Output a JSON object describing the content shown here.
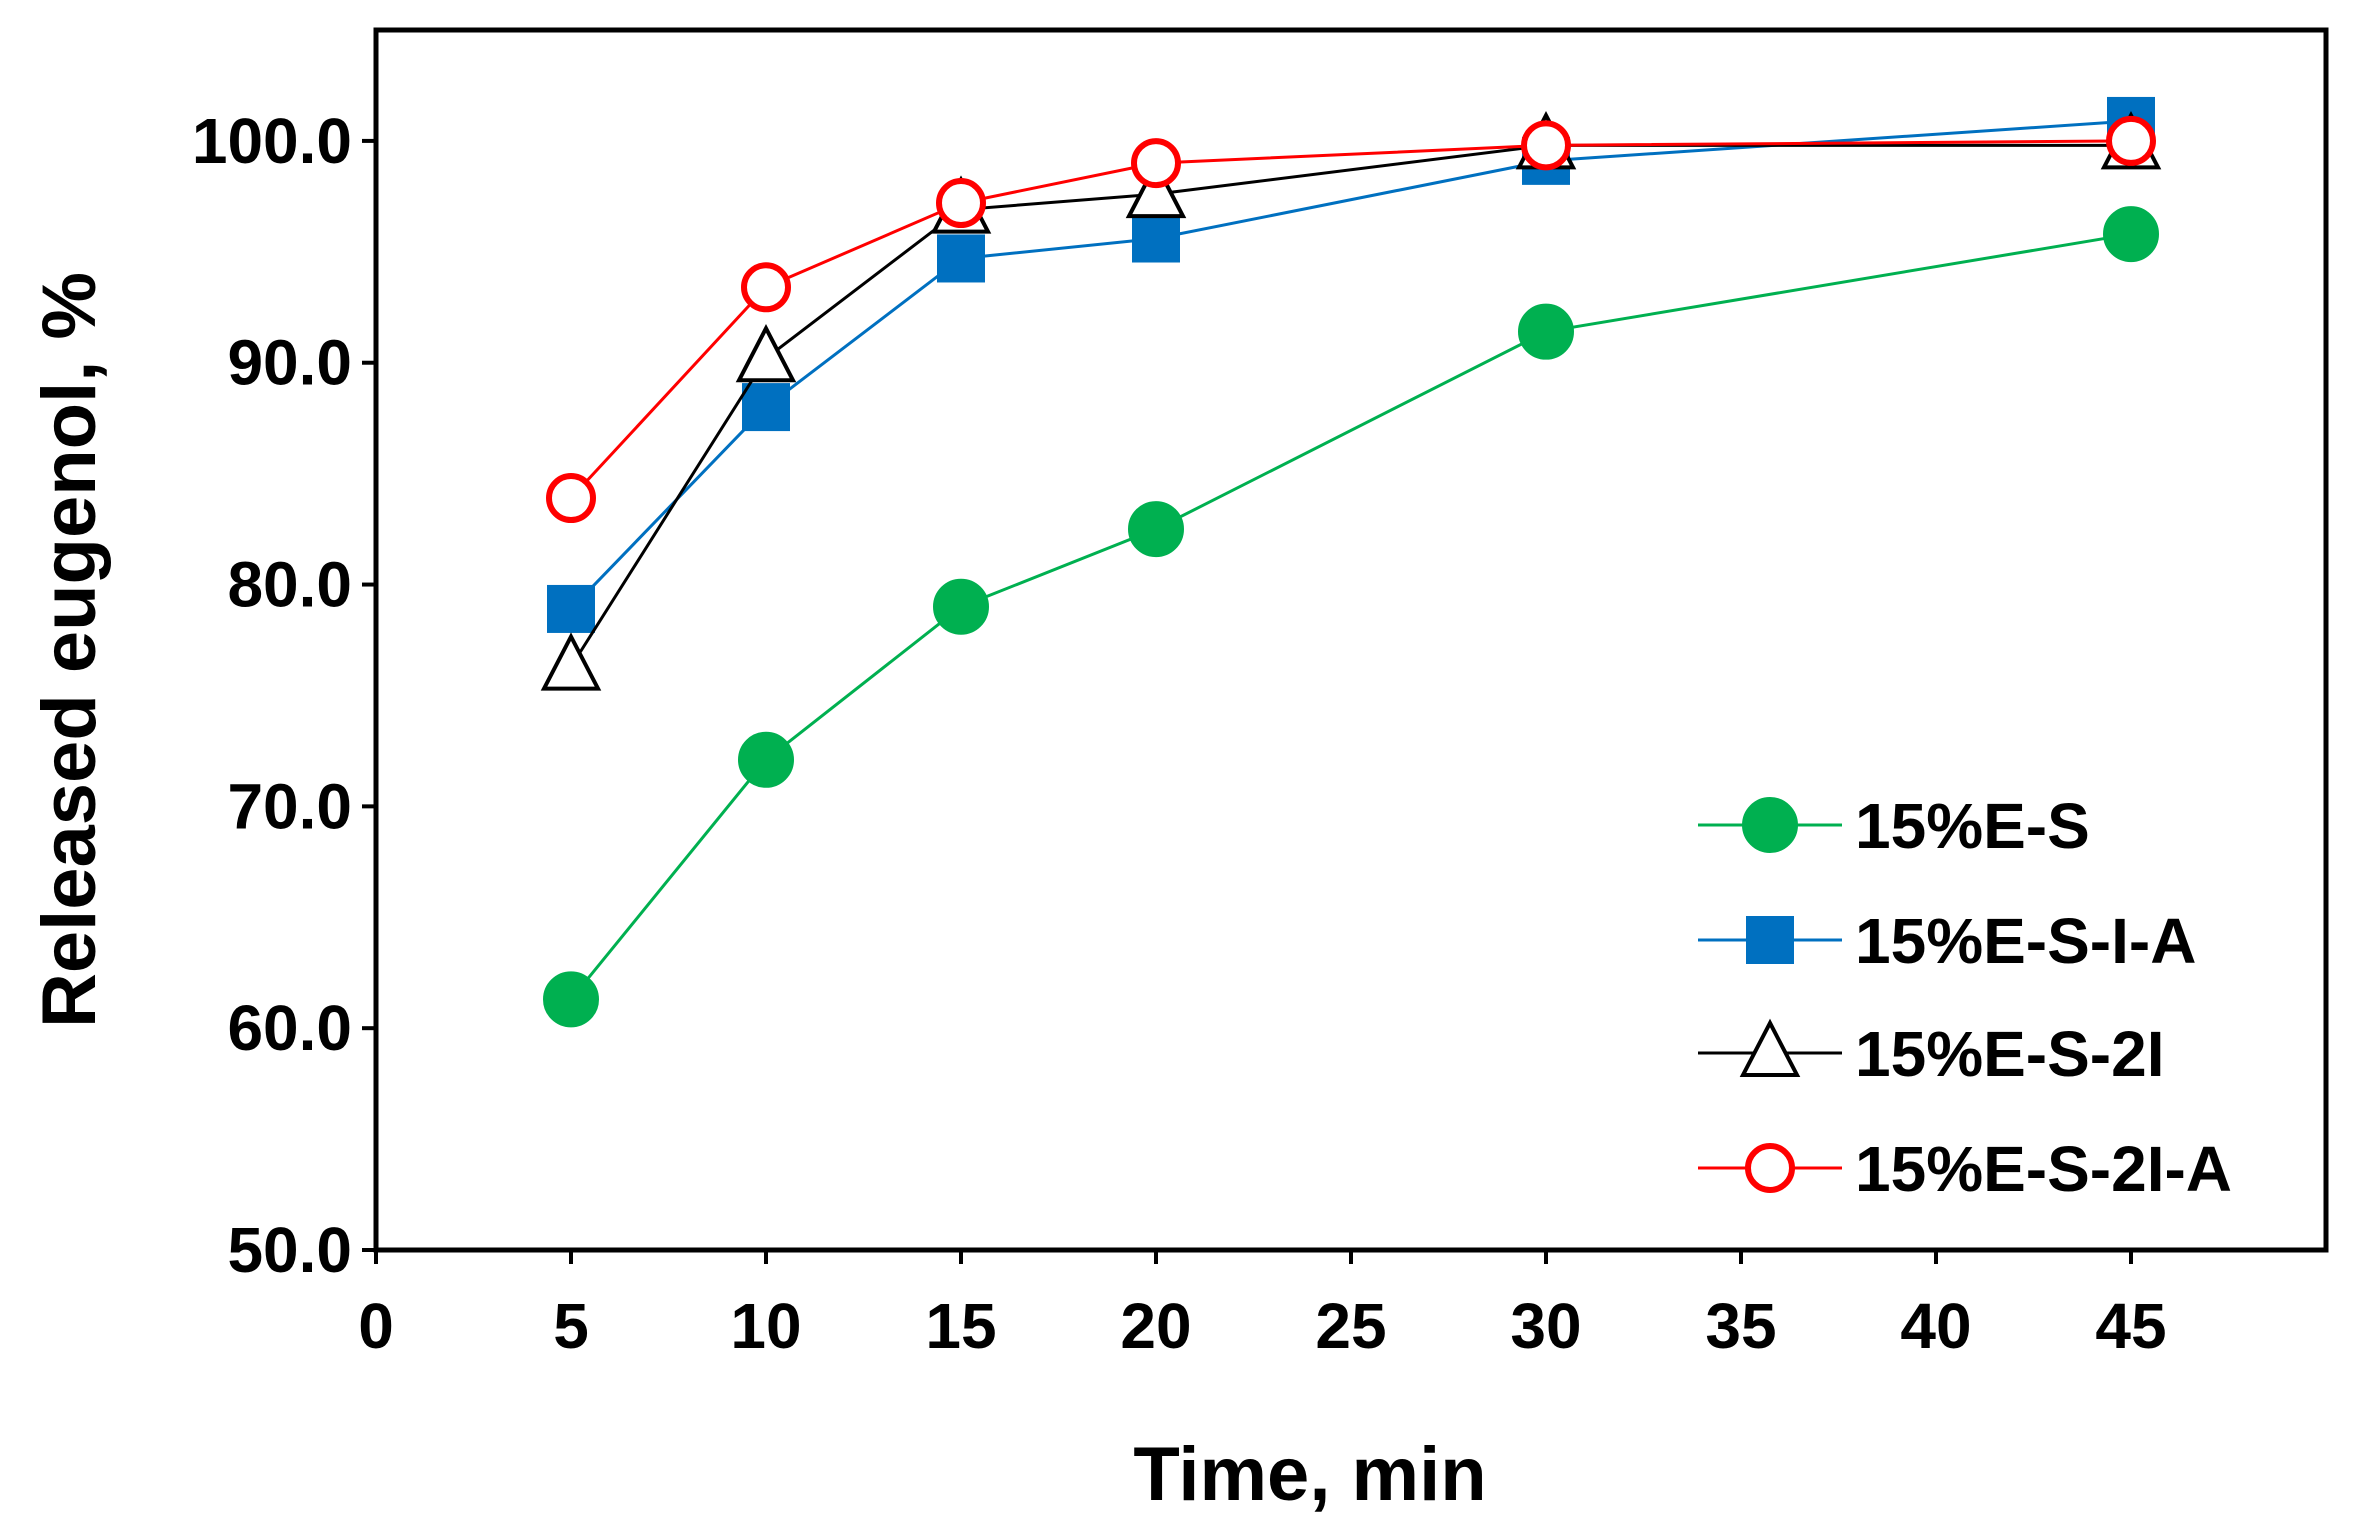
{
  "chart_data": {
    "type": "line",
    "xlabel": "Time, min",
    "ylabel": "Released eugenol, %",
    "xlim": [
      0,
      50
    ],
    "ylim": [
      50,
      105
    ],
    "x_ticks": [
      0,
      5,
      10,
      15,
      20,
      25,
      30,
      35,
      40,
      45
    ],
    "x_tick_labels": [
      "0",
      "5",
      "10",
      "15",
      "20",
      "25",
      "30",
      "35",
      "40",
      "45"
    ],
    "y_ticks": [
      50,
      60,
      70,
      80,
      90,
      100
    ],
    "y_tick_labels": [
      "50.0",
      "60.0",
      "70.0",
      "80.0",
      "90.0",
      "100.0"
    ],
    "grid": false,
    "legend_position": "bottom-right",
    "series": [
      {
        "name": "15%E-S",
        "color": "#00B050",
        "marker": "filled-circle",
        "x": [
          5,
          10,
          15,
          20,
          30,
          45
        ],
        "y": [
          61.3,
          72.1,
          79.0,
          82.5,
          91.4,
          95.8
        ]
      },
      {
        "name": "15%E-S-I-A",
        "color": "#0070C0",
        "marker": "filled-square",
        "x": [
          5,
          10,
          15,
          20,
          30,
          45
        ],
        "y": [
          78.9,
          88.0,
          94.7,
          95.6,
          99.1,
          100.9
        ]
      },
      {
        "name": "15%E-S-2I",
        "color": "#000000",
        "marker": "open-triangle",
        "x": [
          5,
          10,
          15,
          20,
          30,
          45
        ],
        "y": [
          76.3,
          90.2,
          96.9,
          97.6,
          99.8,
          99.8
        ]
      },
      {
        "name": "15%E-S-2I-A",
        "color": "#FF0000",
        "marker": "open-circle",
        "x": [
          5,
          10,
          15,
          20,
          30,
          45
        ],
        "y": [
          83.9,
          93.4,
          97.2,
          99.0,
          99.8,
          100.0
        ]
      }
    ]
  }
}
